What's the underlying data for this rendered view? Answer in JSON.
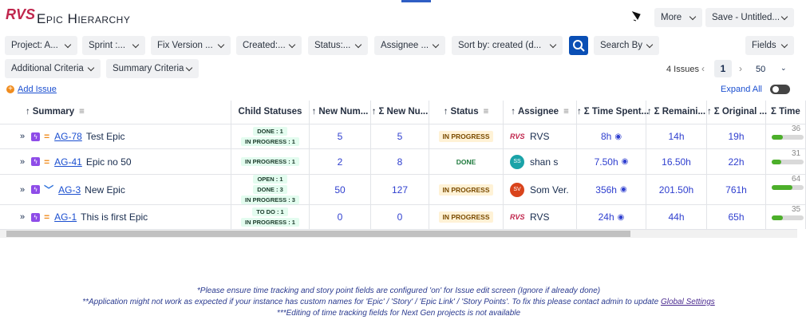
{
  "header": {
    "logo": "RVS",
    "title": "Epic Hierarchy",
    "more": "More",
    "save": "Save - Untitled..."
  },
  "filters": [
    "Project: A...",
    "Sprint :...",
    "Fix Version ...",
    "Created:...",
    "Status:...",
    "Assignee ...",
    "Sort by: created (d..."
  ],
  "search_by": "Search By",
  "fields": "Fields",
  "criteria": [
    "Additional Criteria",
    "Summary Criteria"
  ],
  "pagination": {
    "count": "4 Issues",
    "page": "1",
    "page_size": "50"
  },
  "actions": {
    "add_issue": "Add Issue",
    "expand_all": "Expand All"
  },
  "table": {
    "columns": [
      "Summary",
      "Child Statuses",
      "New Num...",
      "Σ New Nu...",
      "Status",
      "Assignee",
      "Σ Time Spent...",
      "Σ Remaini...",
      "Σ Original ...",
      "Σ Time"
    ],
    "rows": [
      {
        "key": "AG-78",
        "summary": "Test Epic",
        "child_statuses": [
          "DONE : 1",
          "IN PROGRESS : 1"
        ],
        "new_num": 5,
        "sum_new_num": 5,
        "status": "IN PROGRESS",
        "assignee_avatar": "RVS",
        "assignee": "RVS",
        "time_spent": "8h",
        "remaining": "14h",
        "original": "19h",
        "time_percent": 36
      },
      {
        "key": "AG-41",
        "summary": "Epic no 50",
        "child_statuses": [
          "IN PROGRESS : 1"
        ],
        "new_num": 2,
        "sum_new_num": 8,
        "status": "DONE",
        "assignee_avatar": "SS",
        "assignee": "shan s",
        "time_spent": "7.50h",
        "remaining": "16.50h",
        "original": "22h",
        "time_percent": 31
      },
      {
        "key": "AG-3",
        "summary": "New Epic",
        "child_statuses": [
          "OPEN : 1",
          "DONE : 3",
          "IN PROGRESS : 3"
        ],
        "new_num": 50,
        "sum_new_num": 127,
        "status": "IN PROGRESS",
        "assignee_avatar": "SV",
        "assignee": "Som Ver.",
        "time_spent": "356h",
        "remaining": "201.50h",
        "original": "761h",
        "time_percent": 64
      },
      {
        "key": "AG-1",
        "summary": "This is first Epic",
        "child_statuses": [
          "TO DO : 1",
          "IN PROGRESS : 1"
        ],
        "new_num": 0,
        "sum_new_num": 0,
        "status": "IN PROGRESS",
        "assignee_avatar": "RVS",
        "assignee": "RVS",
        "time_spent": "24h",
        "remaining": "44h",
        "original": "65h",
        "time_percent": 35
      }
    ]
  },
  "notes": [
    "*Please ensure time tracking and story point fields are configured 'on' for Issue edit screen (Ignore if already done)",
    "**Application might not work as expected if your instance has custom names for 'Epic' / 'Story' / 'Epic Link' / 'Story Points'. To fix this please contact admin to update",
    "***Editing of time tracking fields for Next Gen projects is not available"
  ],
  "notes_link": "Global Settings"
}
